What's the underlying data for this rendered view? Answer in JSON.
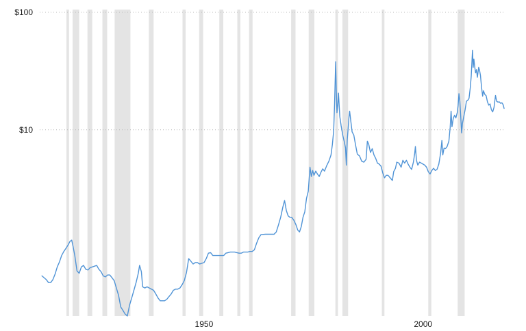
{
  "page": {
    "background": "#ffffff"
  },
  "chart_data": {
    "type": "line",
    "title": "",
    "xlabel": "",
    "ylabel": "",
    "y_scale": "log",
    "xlim": [
      1912.5,
      2018.5
    ],
    "ylim": [
      0.26,
      100
    ],
    "grid": "dotted-horizontal",
    "legend": "none",
    "colors": {
      "line": "#4f93d6",
      "recession_band": "#e4e4e4",
      "gridline": "#b8b8b8",
      "tick_label": "#1a1a1a"
    },
    "y_ticks": [
      {
        "value": 100,
        "label": "$100"
      },
      {
        "value": 10,
        "label": "$10"
      }
    ],
    "x_ticks": [
      {
        "value": 1950,
        "label": "1950"
      },
      {
        "value": 2000,
        "label": "2000"
      }
    ],
    "recession_bands": [
      [
        1918.6,
        1919.2
      ],
      [
        1920.0,
        1921.5
      ],
      [
        1923.4,
        1924.5
      ],
      [
        1926.8,
        1927.9
      ],
      [
        1929.6,
        1933.2
      ],
      [
        1937.4,
        1938.5
      ],
      [
        1945.1,
        1945.8
      ],
      [
        1948.9,
        1949.8
      ],
      [
        1953.5,
        1954.4
      ],
      [
        1957.6,
        1958.3
      ],
      [
        1960.3,
        1961.1
      ],
      [
        1969.9,
        1970.9
      ],
      [
        1973.9,
        1975.2
      ],
      [
        1980.0,
        1980.6
      ],
      [
        1981.6,
        1982.9
      ],
      [
        1990.6,
        1991.2
      ],
      [
        2001.2,
        2001.9
      ],
      [
        2007.9,
        2009.5
      ]
    ],
    "series": [
      {
        "name": "price-usd-per-oz",
        "points": [
          [
            1913.0,
            0.57
          ],
          [
            1913.5,
            0.55
          ],
          [
            1914.0,
            0.53
          ],
          [
            1914.5,
            0.5
          ],
          [
            1915.0,
            0.5
          ],
          [
            1915.5,
            0.53
          ],
          [
            1916.0,
            0.59
          ],
          [
            1916.5,
            0.68
          ],
          [
            1917.0,
            0.75
          ],
          [
            1917.5,
            0.85
          ],
          [
            1918.0,
            0.92
          ],
          [
            1918.5,
            0.98
          ],
          [
            1919.0,
            1.05
          ],
          [
            1919.4,
            1.12
          ],
          [
            1919.8,
            1.15
          ],
          [
            1920.1,
            1.02
          ],
          [
            1920.5,
            0.85
          ],
          [
            1921.0,
            0.63
          ],
          [
            1921.5,
            0.6
          ],
          [
            1922.0,
            0.68
          ],
          [
            1922.5,
            0.7
          ],
          [
            1923.0,
            0.65
          ],
          [
            1923.5,
            0.64
          ],
          [
            1924.0,
            0.67
          ],
          [
            1924.5,
            0.68
          ],
          [
            1925.0,
            0.69
          ],
          [
            1925.5,
            0.7
          ],
          [
            1926.0,
            0.65
          ],
          [
            1926.5,
            0.62
          ],
          [
            1927.0,
            0.57
          ],
          [
            1927.5,
            0.56
          ],
          [
            1928.0,
            0.58
          ],
          [
            1928.5,
            0.58
          ],
          [
            1929.0,
            0.55
          ],
          [
            1929.5,
            0.52
          ],
          [
            1930.0,
            0.45
          ],
          [
            1930.5,
            0.39
          ],
          [
            1931.0,
            0.31
          ],
          [
            1931.5,
            0.29
          ],
          [
            1932.0,
            0.27
          ],
          [
            1932.5,
            0.26
          ],
          [
            1933.0,
            0.32
          ],
          [
            1933.5,
            0.37
          ],
          [
            1934.0,
            0.43
          ],
          [
            1934.5,
            0.5
          ],
          [
            1935.0,
            0.6
          ],
          [
            1935.3,
            0.7
          ],
          [
            1935.7,
            0.62
          ],
          [
            1936.0,
            0.46
          ],
          [
            1936.5,
            0.45
          ],
          [
            1937.0,
            0.46
          ],
          [
            1937.5,
            0.45
          ],
          [
            1938.0,
            0.44
          ],
          [
            1938.5,
            0.43
          ],
          [
            1939.0,
            0.4
          ],
          [
            1939.5,
            0.37
          ],
          [
            1940.0,
            0.35
          ],
          [
            1940.5,
            0.35
          ],
          [
            1941.0,
            0.35
          ],
          [
            1941.5,
            0.36
          ],
          [
            1942.0,
            0.38
          ],
          [
            1942.5,
            0.4
          ],
          [
            1943.0,
            0.43
          ],
          [
            1943.5,
            0.44
          ],
          [
            1944.0,
            0.44
          ],
          [
            1944.5,
            0.45
          ],
          [
            1945.0,
            0.48
          ],
          [
            1945.5,
            0.52
          ],
          [
            1946.0,
            0.61
          ],
          [
            1946.5,
            0.8
          ],
          [
            1947.0,
            0.76
          ],
          [
            1947.5,
            0.72
          ],
          [
            1948.0,
            0.74
          ],
          [
            1948.5,
            0.74
          ],
          [
            1949.0,
            0.72
          ],
          [
            1949.5,
            0.73
          ],
          [
            1950.0,
            0.74
          ],
          [
            1950.5,
            0.8
          ],
          [
            1951.0,
            0.89
          ],
          [
            1951.5,
            0.9
          ],
          [
            1952.0,
            0.85
          ],
          [
            1952.5,
            0.85
          ],
          [
            1953.0,
            0.85
          ],
          [
            1953.5,
            0.85
          ],
          [
            1954.0,
            0.85
          ],
          [
            1954.5,
            0.85
          ],
          [
            1955.0,
            0.89
          ],
          [
            1955.5,
            0.9
          ],
          [
            1956.0,
            0.91
          ],
          [
            1956.5,
            0.91
          ],
          [
            1957.0,
            0.91
          ],
          [
            1957.5,
            0.9
          ],
          [
            1958.0,
            0.89
          ],
          [
            1958.5,
            0.89
          ],
          [
            1959.0,
            0.91
          ],
          [
            1959.5,
            0.91
          ],
          [
            1960.0,
            0.91
          ],
          [
            1960.5,
            0.92
          ],
          [
            1961.0,
            0.92
          ],
          [
            1961.5,
            0.95
          ],
          [
            1962.0,
            1.08
          ],
          [
            1962.5,
            1.2
          ],
          [
            1963.0,
            1.28
          ],
          [
            1964.0,
            1.29
          ],
          [
            1965.0,
            1.29
          ],
          [
            1966.0,
            1.29
          ],
          [
            1966.5,
            1.35
          ],
          [
            1967.0,
            1.55
          ],
          [
            1967.5,
            1.8
          ],
          [
            1968.0,
            2.2
          ],
          [
            1968.4,
            2.5
          ],
          [
            1968.8,
            2.05
          ],
          [
            1969.2,
            1.85
          ],
          [
            1969.6,
            1.8
          ],
          [
            1970.0,
            1.8
          ],
          [
            1970.5,
            1.7
          ],
          [
            1971.0,
            1.55
          ],
          [
            1971.4,
            1.4
          ],
          [
            1971.8,
            1.35
          ],
          [
            1972.2,
            1.5
          ],
          [
            1972.6,
            1.8
          ],
          [
            1973.0,
            2.0
          ],
          [
            1973.4,
            2.6
          ],
          [
            1973.8,
            3.0
          ],
          [
            1974.2,
            4.8
          ],
          [
            1974.5,
            4.0
          ],
          [
            1974.8,
            4.5
          ],
          [
            1975.1,
            4.1
          ],
          [
            1975.5,
            4.45
          ],
          [
            1975.9,
            4.2
          ],
          [
            1976.3,
            4.0
          ],
          [
            1976.7,
            4.35
          ],
          [
            1977.1,
            4.65
          ],
          [
            1977.5,
            4.45
          ],
          [
            1978.0,
            4.95
          ],
          [
            1978.5,
            5.4
          ],
          [
            1979.0,
            6.1
          ],
          [
            1979.3,
            7.5
          ],
          [
            1979.6,
            9.8
          ],
          [
            1979.8,
            16.5
          ],
          [
            1980.05,
            38.0
          ],
          [
            1980.2,
            22.0
          ],
          [
            1980.35,
            14.0
          ],
          [
            1980.55,
            16.5
          ],
          [
            1980.7,
            20.5
          ],
          [
            1981.0,
            13.0
          ],
          [
            1981.3,
            10.8
          ],
          [
            1981.7,
            8.9
          ],
          [
            1982.0,
            8.0
          ],
          [
            1982.3,
            7.0
          ],
          [
            1982.5,
            5.0
          ],
          [
            1982.7,
            8.2
          ],
          [
            1982.9,
            10.2
          ],
          [
            1983.1,
            13.0
          ],
          [
            1983.25,
            14.4
          ],
          [
            1983.5,
            12.0
          ],
          [
            1983.8,
            9.6
          ],
          [
            1984.2,
            9.0
          ],
          [
            1984.6,
            7.4
          ],
          [
            1985.0,
            6.2
          ],
          [
            1985.5,
            6.0
          ],
          [
            1986.0,
            5.4
          ],
          [
            1986.5,
            5.3
          ],
          [
            1987.0,
            5.6
          ],
          [
            1987.3,
            8.0
          ],
          [
            1987.6,
            7.5
          ],
          [
            1988.0,
            6.4
          ],
          [
            1988.4,
            6.9
          ],
          [
            1988.8,
            6.1
          ],
          [
            1989.2,
            5.7
          ],
          [
            1989.6,
            5.2
          ],
          [
            1990.0,
            5.1
          ],
          [
            1990.4,
            4.9
          ],
          [
            1990.8,
            4.3
          ],
          [
            1991.2,
            3.9
          ],
          [
            1991.6,
            4.1
          ],
          [
            1992.0,
            4.1
          ],
          [
            1992.5,
            3.9
          ],
          [
            1993.0,
            3.7
          ],
          [
            1993.3,
            4.4
          ],
          [
            1993.7,
            4.7
          ],
          [
            1994.0,
            5.3
          ],
          [
            1994.5,
            5.2
          ],
          [
            1995.0,
            4.8
          ],
          [
            1995.4,
            5.5
          ],
          [
            1995.8,
            5.2
          ],
          [
            1996.2,
            5.5
          ],
          [
            1996.6,
            5.1
          ],
          [
            1997.0,
            4.8
          ],
          [
            1997.4,
            4.6
          ],
          [
            1997.8,
            5.3
          ],
          [
            1998.1,
            6.3
          ],
          [
            1998.25,
            7.2
          ],
          [
            1998.5,
            5.5
          ],
          [
            1998.8,
            5.0
          ],
          [
            1999.2,
            5.3
          ],
          [
            1999.6,
            5.2
          ],
          [
            2000.0,
            5.1
          ],
          [
            2000.4,
            5.0
          ],
          [
            2000.8,
            4.8
          ],
          [
            2001.2,
            4.4
          ],
          [
            2001.6,
            4.2
          ],
          [
            2002.0,
            4.5
          ],
          [
            2002.4,
            4.7
          ],
          [
            2002.8,
            4.5
          ],
          [
            2003.2,
            4.6
          ],
          [
            2003.6,
            5.1
          ],
          [
            2004.0,
            6.3
          ],
          [
            2004.3,
            8.1
          ],
          [
            2004.5,
            6.1
          ],
          [
            2004.8,
            7.0
          ],
          [
            2005.1,
            6.9
          ],
          [
            2005.5,
            7.2
          ],
          [
            2005.9,
            8.0
          ],
          [
            2006.2,
            10.5
          ],
          [
            2006.4,
            14.4
          ],
          [
            2006.6,
            10.6
          ],
          [
            2006.9,
            12.5
          ],
          [
            2007.2,
            13.3
          ],
          [
            2007.5,
            12.6
          ],
          [
            2007.8,
            14.0
          ],
          [
            2008.0,
            16.0
          ],
          [
            2008.2,
            20.3
          ],
          [
            2008.4,
            17.5
          ],
          [
            2008.6,
            13.0
          ],
          [
            2008.8,
            9.4
          ],
          [
            2009.0,
            11.3
          ],
          [
            2009.3,
            13.0
          ],
          [
            2009.6,
            14.8
          ],
          [
            2009.9,
            17.5
          ],
          [
            2010.2,
            17.8
          ],
          [
            2010.5,
            18.5
          ],
          [
            2010.8,
            23.0
          ],
          [
            2011.0,
            28.5
          ],
          [
            2011.3,
            47.5
          ],
          [
            2011.45,
            34.0
          ],
          [
            2011.6,
            40.0
          ],
          [
            2011.8,
            34.5
          ],
          [
            2012.0,
            30.5
          ],
          [
            2012.2,
            32.5
          ],
          [
            2012.4,
            28.0
          ],
          [
            2012.7,
            34.0
          ],
          [
            2012.9,
            32.0
          ],
          [
            2013.1,
            29.0
          ],
          [
            2013.35,
            23.0
          ],
          [
            2013.6,
            19.3
          ],
          [
            2013.8,
            21.5
          ],
          [
            2014.1,
            20.0
          ],
          [
            2014.4,
            19.5
          ],
          [
            2014.7,
            17.3
          ],
          [
            2015.0,
            16.2
          ],
          [
            2015.3,
            16.6
          ],
          [
            2015.6,
            14.8
          ],
          [
            2015.9,
            14.2
          ],
          [
            2016.2,
            15.5
          ],
          [
            2016.55,
            19.6
          ],
          [
            2016.8,
            17.5
          ],
          [
            2017.1,
            17.2
          ],
          [
            2017.4,
            17.3
          ],
          [
            2017.7,
            16.8
          ],
          [
            2018.0,
            17.0
          ],
          [
            2018.3,
            16.3
          ],
          [
            2018.5,
            15.2
          ]
        ]
      }
    ]
  }
}
